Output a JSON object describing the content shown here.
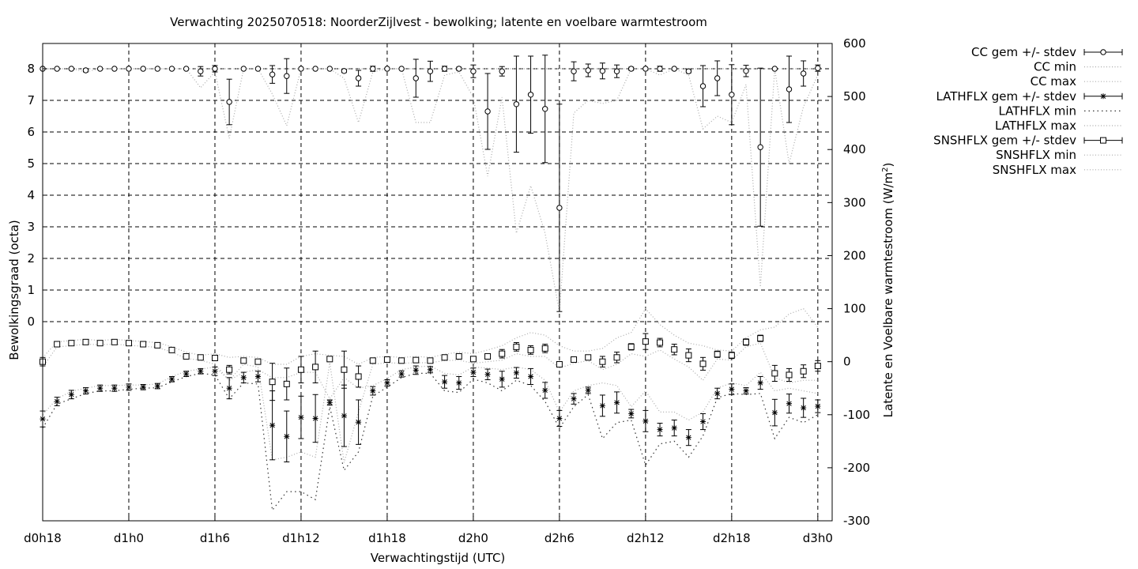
{
  "chart_data": {
    "type": "line",
    "title": "Verwachting 2025070518: NoorderZijlvest - bewolking; latente en voelbare warmtestroom",
    "xlabel": "Verwachtingstijd (UTC)",
    "ylabel": "Bewolkingsgraad (octa)",
    "y2label_main": "Latente en Voelbare warmtestroom (W/m",
    "y2label_sup": "2",
    "y2label_end": ")",
    "xlim": [
      18,
      73
    ],
    "x_ticks": [
      {
        "x": 18,
        "label": "d0h18"
      },
      {
        "x": 24,
        "label": "d1h0"
      },
      {
        "x": 30,
        "label": "d1h6"
      },
      {
        "x": 36,
        "label": "d1h12"
      },
      {
        "x": 42,
        "label": "d1h18"
      },
      {
        "x": 48,
        "label": "d2h0"
      },
      {
        "x": 54,
        "label": "d2h6"
      },
      {
        "x": 60,
        "label": "d2h12"
      },
      {
        "x": 66,
        "label": "d2h18"
      },
      {
        "x": 72,
        "label": "d3h0"
      }
    ],
    "y_ticks": [
      0,
      1,
      2,
      3,
      4,
      5,
      6,
      7,
      8
    ],
    "y2_ticks": [
      -300,
      -200,
      -100,
      0,
      100,
      200,
      300,
      400,
      500,
      600
    ],
    "ylim": [
      -6.3,
      8.8
    ],
    "y2lim": [
      -300,
      600
    ],
    "grid": true,
    "legend_position": "outside-right",
    "legend": [
      {
        "label": "CC gem +/- stdev",
        "style": "errorbar",
        "marker": "circle"
      },
      {
        "label": "CC min",
        "style": "dotted"
      },
      {
        "label": "CC max",
        "style": "dotted"
      },
      {
        "label": "LATHFLX gem +/- stdev",
        "style": "errorbar",
        "marker": "star"
      },
      {
        "label": "LATHFLX min",
        "style": "dotted-coarse"
      },
      {
        "label": "LATHFLX max",
        "style": "dotted"
      },
      {
        "label": "SNSHFLX gem +/- stdev",
        "style": "errorbar",
        "marker": "square"
      },
      {
        "label": "SNSHFLX min",
        "style": "dotted"
      },
      {
        "label": "SNSHFLX max",
        "style": "dotted"
      }
    ],
    "series": [
      {
        "name": "CC gem +/- stdev",
        "axis": "y1",
        "marker": "circle",
        "x": [
          18,
          19,
          20,
          21,
          22,
          23,
          24,
          25,
          26,
          27,
          28,
          29,
          30,
          31,
          32,
          33,
          34,
          35,
          36,
          37,
          38,
          39,
          40,
          41,
          42,
          43,
          44,
          45,
          46,
          47,
          48,
          49,
          50,
          51,
          52,
          53,
          54,
          55,
          56,
          57,
          58,
          59,
          60,
          61,
          62,
          63,
          64,
          65,
          66,
          67,
          68,
          69,
          70,
          71,
          72
        ],
        "mean": [
          8,
          8,
          8,
          7.95,
          8,
          8,
          8,
          8,
          8,
          8,
          8,
          7.92,
          8,
          6.95,
          8,
          8,
          7.82,
          7.77,
          8,
          8,
          8,
          7.93,
          7.7,
          8,
          8,
          8,
          7.7,
          7.92,
          8,
          8,
          7.92,
          6.65,
          7.92,
          6.88,
          7.18,
          6.73,
          3.6,
          7.92,
          7.95,
          7.93,
          7.92,
          8,
          8,
          8,
          8,
          7.92,
          7.45,
          7.7,
          7.18,
          7.93,
          5.52,
          8,
          7.35,
          7.85,
          8.02
        ],
        "stdev": [
          0,
          0,
          0,
          0.05,
          0,
          0,
          0,
          0,
          0,
          0,
          0,
          0.15,
          0.1,
          0.72,
          0,
          0,
          0.28,
          0.55,
          0,
          0,
          0,
          0.05,
          0.25,
          0.08,
          0,
          0,
          0.6,
          0.32,
          0.08,
          0.05,
          0.2,
          1.2,
          0.15,
          1.52,
          1.22,
          1.7,
          3.28,
          0.3,
          0.2,
          0.25,
          0.2,
          0.05,
          0,
          0.08,
          0,
          0.05,
          0.65,
          0.55,
          0.95,
          0.18,
          2.5,
          0,
          1.05,
          0.4,
          0.1
        ]
      },
      {
        "name": "CC min",
        "axis": "y1",
        "line": "dotted",
        "x": [
          18,
          19,
          20,
          21,
          22,
          23,
          24,
          25,
          26,
          27,
          28,
          29,
          30,
          31,
          32,
          33,
          34,
          35,
          36,
          37,
          38,
          39,
          40,
          41,
          42,
          43,
          44,
          45,
          46,
          47,
          48,
          49,
          50,
          51,
          52,
          53,
          54,
          55,
          56,
          57,
          58,
          59,
          60,
          61,
          62,
          63,
          64,
          65,
          66,
          67,
          68,
          69,
          70,
          71,
          72
        ],
        "values": [
          8,
          8,
          8,
          7.9,
          8,
          8,
          8,
          8,
          8,
          8,
          8,
          7.4,
          7.9,
          5.8,
          8,
          8,
          7.2,
          6.2,
          8,
          8,
          8,
          7.7,
          6.3,
          7.9,
          8,
          8,
          6.3,
          6.3,
          7.8,
          7.9,
          7.1,
          4.6,
          7.1,
          2.8,
          4.3,
          2.8,
          0.3,
          6.6,
          7.0,
          6.9,
          7.0,
          8,
          8,
          7.8,
          8,
          7.8,
          6.1,
          6.5,
          6.3,
          7.5,
          1.1,
          8,
          5.0,
          6.8,
          7.8
        ]
      },
      {
        "name": "CC max",
        "axis": "y1",
        "line": "dotted",
        "x": [
          18,
          72
        ],
        "values": [
          8,
          8
        ]
      },
      {
        "name": "LATHFLX gem +/- stdev",
        "axis": "y2",
        "marker": "star",
        "x": [
          18,
          19,
          20,
          21,
          22,
          23,
          24,
          25,
          26,
          27,
          28,
          29,
          30,
          31,
          32,
          33,
          34,
          35,
          36,
          37,
          38,
          39,
          40,
          41,
          42,
          43,
          44,
          45,
          46,
          47,
          48,
          49,
          50,
          51,
          52,
          53,
          54,
          55,
          56,
          57,
          58,
          59,
          60,
          61,
          62,
          63,
          64,
          65,
          66,
          67,
          68,
          69,
          70,
          71,
          72
        ],
        "mean": [
          -108,
          -75,
          -62,
          -55,
          -50,
          -50,
          -48,
          -48,
          -46,
          -33,
          -23,
          -18,
          -18,
          -50,
          -30,
          -28,
          -120,
          -141,
          -105,
          -107,
          -77,
          -102,
          -114,
          -55,
          -40,
          -23,
          -16,
          -15,
          -38,
          -40,
          -20,
          -24,
          -33,
          -21,
          -28,
          -54,
          -107,
          -70,
          -54,
          -83,
          -77,
          -98,
          -112,
          -128,
          -125,
          -143,
          -113,
          -60,
          -52,
          -55,
          -40,
          -96,
          -79,
          -87,
          -84
        ],
        "stdev": [
          15,
          8,
          8,
          6,
          6,
          6,
          6,
          5,
          5,
          5,
          5,
          5,
          8,
          20,
          10,
          10,
          65,
          48,
          40,
          45,
          5,
          58,
          42,
          8,
          6,
          6,
          8,
          6,
          12,
          12,
          8,
          10,
          15,
          10,
          15,
          15,
          15,
          10,
          6,
          20,
          20,
          8,
          20,
          12,
          15,
          15,
          15,
          10,
          10,
          6,
          12,
          25,
          18,
          18,
          12
        ]
      },
      {
        "name": "LATHFLX min",
        "axis": "y2",
        "line": "dotted-coarse",
        "x": [
          18,
          19,
          20,
          21,
          22,
          23,
          24,
          25,
          26,
          27,
          28,
          29,
          30,
          31,
          32,
          33,
          34,
          35,
          36,
          37,
          38,
          39,
          40,
          41,
          42,
          43,
          44,
          45,
          46,
          47,
          48,
          49,
          50,
          51,
          52,
          53,
          54,
          55,
          56,
          57,
          58,
          59,
          60,
          61,
          62,
          63,
          64,
          65,
          66,
          67,
          68,
          69,
          70,
          71,
          72
        ],
        "values": [
          -125,
          -80,
          -70,
          -60,
          -55,
          -55,
          -52,
          -50,
          -49,
          -38,
          -28,
          -22,
          -25,
          -70,
          -40,
          -42,
          -280,
          -245,
          -245,
          -260,
          -85,
          -205,
          -170,
          -65,
          -48,
          -30,
          -22,
          -22,
          -55,
          -58,
          -33,
          -40,
          -55,
          -35,
          -45,
          -75,
          -125,
          -85,
          -62,
          -145,
          -115,
          -110,
          -195,
          -155,
          -150,
          -180,
          -140,
          -68,
          -60,
          -62,
          -60,
          -145,
          -105,
          -115,
          -100
        ]
      },
      {
        "name": "LATHFLX max",
        "axis": "y2",
        "line": "dotted",
        "x": [
          18,
          19,
          20,
          21,
          22,
          23,
          24,
          25,
          26,
          27,
          28,
          29,
          30,
          31,
          32,
          33,
          34,
          35,
          36,
          37,
          38,
          39,
          40,
          41,
          42,
          43,
          44,
          45,
          46,
          47,
          48,
          49,
          50,
          51,
          52,
          53,
          54,
          55,
          56,
          57,
          58,
          59,
          60,
          61,
          62,
          63,
          64,
          65,
          66,
          67,
          68,
          69,
          70,
          71,
          72
        ],
        "values": [
          -100,
          -70,
          -56,
          -50,
          -45,
          -45,
          -44,
          -44,
          -42,
          -28,
          -18,
          -14,
          -10,
          -35,
          -20,
          -15,
          -30,
          -30,
          -20,
          -20,
          -70,
          -30,
          -50,
          -45,
          -32,
          -15,
          -10,
          -8,
          -22,
          -25,
          -10,
          -12,
          -15,
          -10,
          -15,
          -35,
          -95,
          -55,
          -45,
          -40,
          -45,
          -85,
          -55,
          -95,
          -95,
          -110,
          -95,
          -50,
          -40,
          -45,
          -20,
          -55,
          -50,
          -55,
          -60
        ]
      },
      {
        "name": "SNSHFLX gem +/- stdev",
        "axis": "y2",
        "marker": "square",
        "x": [
          18,
          19,
          20,
          21,
          22,
          23,
          24,
          25,
          26,
          27,
          28,
          29,
          30,
          31,
          32,
          33,
          34,
          35,
          36,
          37,
          38,
          39,
          40,
          41,
          42,
          43,
          44,
          45,
          46,
          47,
          48,
          49,
          50,
          51,
          52,
          53,
          54,
          55,
          56,
          57,
          58,
          59,
          60,
          61,
          62,
          63,
          64,
          65,
          66,
          67,
          68,
          69,
          70,
          71,
          72
        ],
        "mean": [
          0,
          33,
          35,
          37,
          35,
          37,
          35,
          33,
          31,
          22,
          10,
          8,
          7,
          -15,
          2,
          0,
          -38,
          -42,
          -15,
          -10,
          5,
          -15,
          -28,
          2,
          4,
          2,
          3,
          2,
          8,
          10,
          5,
          10,
          15,
          28,
          22,
          25,
          -5,
          4,
          8,
          0,
          8,
          28,
          38,
          36,
          23,
          12,
          -4,
          14,
          12,
          37,
          44,
          -22,
          -25,
          -18,
          -8
        ],
        "stdev": [
          8,
          4,
          4,
          4,
          3,
          3,
          3,
          3,
          3,
          3,
          3,
          3,
          5,
          8,
          4,
          4,
          35,
          30,
          25,
          30,
          5,
          35,
          20,
          5,
          4,
          4,
          4,
          4,
          5,
          5,
          5,
          5,
          8,
          8,
          8,
          8,
          3,
          3,
          3,
          10,
          10,
          6,
          15,
          8,
          10,
          12,
          12,
          6,
          6,
          6,
          6,
          15,
          12,
          12,
          10
        ]
      },
      {
        "name": "SNSHFLX min",
        "axis": "y2",
        "line": "dotted",
        "x": [
          18,
          19,
          20,
          21,
          22,
          23,
          24,
          25,
          26,
          27,
          28,
          29,
          30,
          31,
          32,
          33,
          34,
          35,
          36,
          37,
          38,
          39,
          40,
          41,
          42,
          43,
          44,
          45,
          46,
          47,
          48,
          49,
          50,
          51,
          52,
          53,
          54,
          55,
          56,
          57,
          58,
          59,
          60,
          61,
          62,
          63,
          64,
          65,
          66,
          67,
          68,
          69,
          70,
          71,
          72
        ],
        "values": [
          -10,
          28,
          30,
          33,
          32,
          33,
          31,
          29,
          27,
          18,
          6,
          3,
          -5,
          -35,
          -5,
          -10,
          -185,
          -180,
          -170,
          -180,
          -2,
          -190,
          -95,
          -5,
          -2,
          -3,
          -2,
          -2,
          2,
          3,
          -3,
          0,
          3,
          15,
          10,
          10,
          -12,
          -3,
          2,
          -15,
          -5,
          15,
          10,
          22,
          5,
          -10,
          -35,
          5,
          3,
          28,
          35,
          -30,
          -40,
          -35,
          -35
        ]
      },
      {
        "name": "SNSHFLX max",
        "axis": "y2",
        "line": "dotted",
        "x": [
          18,
          19,
          20,
          21,
          22,
          23,
          24,
          25,
          26,
          27,
          28,
          29,
          30,
          31,
          32,
          33,
          34,
          35,
          36,
          37,
          38,
          39,
          40,
          41,
          42,
          43,
          44,
          45,
          46,
          47,
          48,
          49,
          50,
          51,
          52,
          53,
          54,
          55,
          56,
          57,
          58,
          59,
          60,
          61,
          62,
          63,
          64,
          65,
          66,
          67,
          68,
          69,
          70,
          71,
          72
        ],
        "values": [
          8,
          37,
          40,
          42,
          40,
          42,
          40,
          38,
          36,
          28,
          18,
          12,
          15,
          8,
          10,
          8,
          -5,
          -5,
          10,
          15,
          12,
          10,
          -5,
          8,
          10,
          8,
          10,
          8,
          14,
          18,
          15,
          22,
          30,
          45,
          55,
          50,
          30,
          20,
          20,
          25,
          45,
          55,
          100,
          70,
          50,
          35,
          30,
          22,
          20,
          45,
          60,
          65,
          90,
          100,
          65
        ]
      }
    ]
  }
}
